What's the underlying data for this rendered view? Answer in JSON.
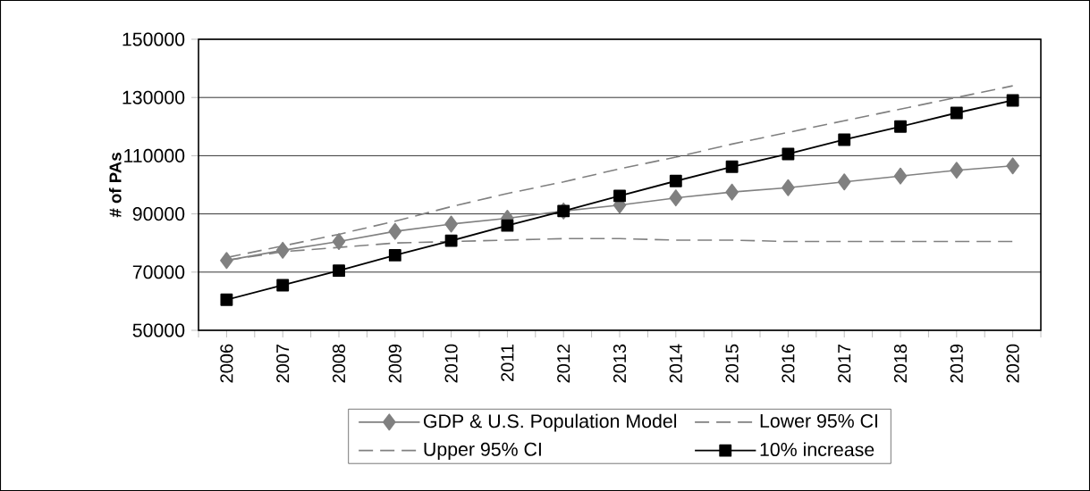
{
  "chart_data": {
    "type": "line",
    "ylabel": "# of PAs",
    "categories": [
      "2006",
      "2007",
      "2008",
      "2009",
      "2010",
      "2011",
      "2012",
      "2013",
      "2014",
      "2015",
      "2016",
      "2017",
      "2018",
      "2019",
      "2020"
    ],
    "ylim": [
      50000,
      150000
    ],
    "yticks": [
      50000,
      70000,
      90000,
      110000,
      130000,
      150000
    ],
    "grid": "y",
    "legend": "bottom",
    "series": [
      {
        "name": "GDP & U.S. Population Model",
        "color": "#808080",
        "marker": "diamond",
        "line_style": "solid",
        "values": [
          74000,
          77500,
          80500,
          84000,
          86500,
          88500,
          91000,
          93000,
          95500,
          97500,
          99000,
          101000,
          103000,
          105000,
          106500
        ]
      },
      {
        "name": "Lower 95% CI",
        "color": "#808080",
        "marker": "none",
        "line_style": "dashed",
        "values": [
          74000,
          77000,
          78500,
          80000,
          80500,
          81000,
          81500,
          81500,
          81000,
          81000,
          80500,
          80500,
          80500,
          80500,
          80500
        ]
      },
      {
        "name": "Upper 95% CI",
        "color": "#808080",
        "marker": "none",
        "line_style": "dashed",
        "values": [
          75000,
          79000,
          83000,
          87500,
          92500,
          97000,
          101000,
          105500,
          109500,
          114000,
          118000,
          122000,
          126000,
          130000,
          134000
        ]
      },
      {
        "name": "10% increase",
        "color": "#000000",
        "marker": "square",
        "line_style": "solid",
        "values": [
          60500,
          65500,
          70500,
          75800,
          80800,
          86000,
          91000,
          96200,
          101300,
          106200,
          110600,
          115500,
          120000,
          124700,
          129000
        ]
      }
    ]
  }
}
